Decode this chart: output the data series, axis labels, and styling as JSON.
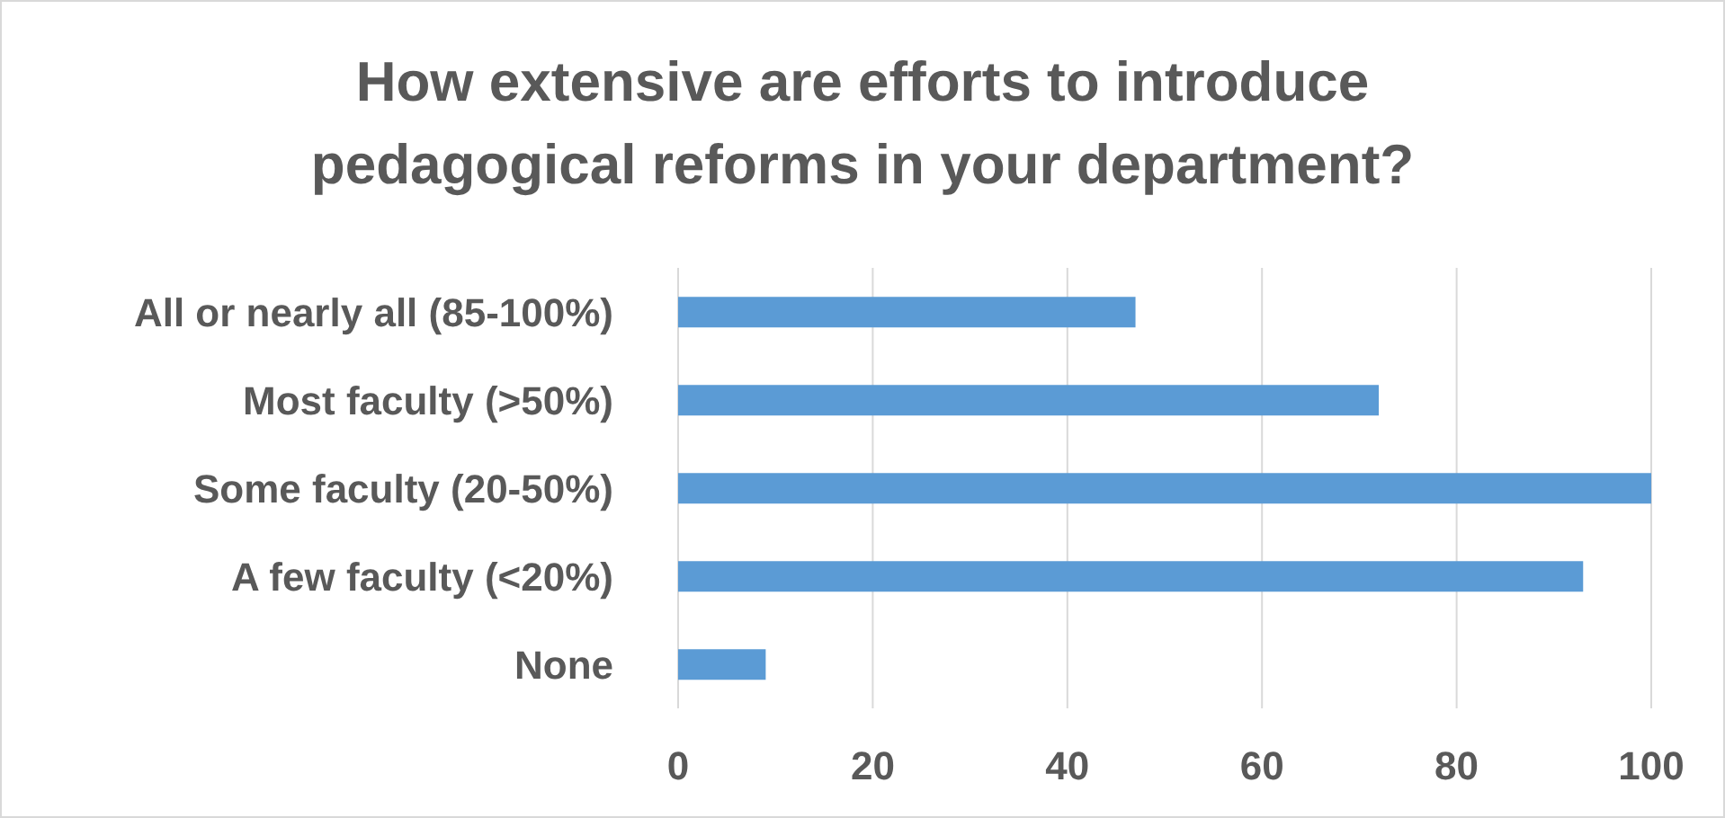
{
  "chart_data": {
    "type": "bar",
    "orientation": "horizontal",
    "title": "How extensive are efforts to introduce pedagogical reforms in your department?",
    "categories": [
      "All or nearly all (85-100%)",
      "Most faculty (>50%)",
      "Some faculty (20-50%)",
      "A few faculty (<20%)",
      "None"
    ],
    "values": [
      47,
      72,
      100,
      93,
      9
    ],
    "color": "#5b9bd5",
    "xlim": [
      0,
      100
    ],
    "xticks": [
      0,
      20,
      40,
      60,
      80,
      100
    ],
    "grid": "x"
  }
}
